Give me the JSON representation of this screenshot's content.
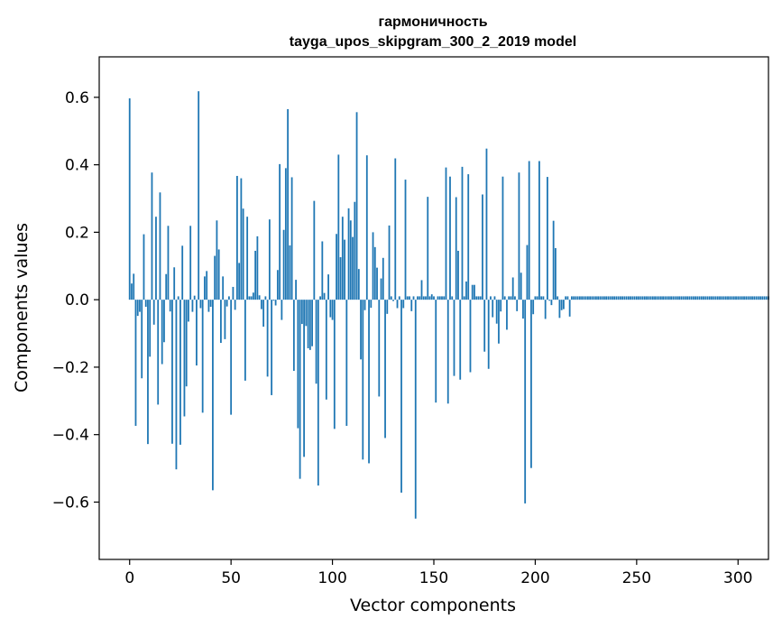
{
  "chart_data": {
    "type": "bar",
    "title_line1": "гармоничность",
    "title_line2": "tayga_upos_skipgram_300_2_2019 model",
    "xlabel": "Vector components",
    "ylabel": "Components values",
    "xlim": [
      -15,
      315
    ],
    "ylim": [
      -0.77,
      0.72
    ],
    "x_ticks": [
      0,
      50,
      100,
      150,
      200,
      250,
      300
    ],
    "x_tick_labels": [
      "0",
      "50",
      "100",
      "150",
      "200",
      "250",
      "300"
    ],
    "y_ticks": [
      -0.6,
      -0.4,
      -0.2,
      0.0,
      0.2,
      0.4,
      0.6
    ],
    "y_tick_labels": [
      "−0.6",
      "−0.4",
      "−0.2",
      "0.0",
      "0.2",
      "0.4",
      "0.6"
    ],
    "bar_color": "#1f77b4",
    "x_start": 0,
    "values": [
      0.597,
      0.048,
      0.077,
      -0.374,
      -0.048,
      -0.036,
      -0.233,
      0.194,
      -0.021,
      -0.428,
      -0.169,
      0.377,
      -0.074,
      0.246,
      -0.311,
      0.318,
      -0.191,
      -0.126,
      0.076,
      0.219,
      -0.035,
      -0.427,
      0.096,
      -0.503,
      0.01,
      -0.43,
      0.16,
      -0.346,
      -0.257,
      -0.065,
      0.219,
      -0.036,
      0.012,
      -0.195,
      0.618,
      -0.025,
      -0.335,
      0.069,
      0.085,
      -0.036,
      -0.021,
      -0.565,
      0.13,
      0.235,
      0.149,
      -0.128,
      0.069,
      -0.117,
      -0.02,
      0.01,
      -0.341,
      0.038,
      -0.03,
      0.367,
      0.109,
      0.36,
      0.27,
      -0.24,
      0.246,
      0.01,
      0.01,
      0.021,
      0.145,
      0.188,
      0.013,
      -0.028,
      -0.08,
      0.01,
      -0.228,
      0.238,
      -0.283,
      -0.003,
      -0.017,
      0.088,
      0.402,
      -0.06,
      0.207,
      0.39,
      0.565,
      0.161,
      0.363,
      -0.211,
      0.059,
      -0.381,
      -0.531,
      -0.072,
      -0.466,
      -0.078,
      -0.144,
      -0.149,
      -0.138,
      0.293,
      -0.249,
      -0.551,
      0.01,
      0.173,
      0.02,
      -0.296,
      0.075,
      -0.052,
      -0.06,
      -0.383,
      0.195,
      0.43,
      0.126,
      0.246,
      0.178,
      -0.374,
      0.271,
      0.235,
      0.186,
      0.29,
      0.556,
      0.091,
      -0.177,
      -0.474,
      -0.031,
      0.428,
      -0.485,
      -0.024,
      0.2,
      0.156,
      0.095,
      -0.287,
      0.063,
      0.124,
      -0.41,
      -0.042,
      0.22,
      0.01,
      -0.004,
      0.419,
      -0.025,
      0.01,
      -0.572,
      -0.025,
      0.356,
      0.01,
      0.01,
      -0.034,
      0.01,
      -0.649,
      0.01,
      0.01,
      0.058,
      0.01,
      0.01,
      0.305,
      0.01,
      0.016,
      0.01,
      -0.305,
      0.01,
      0.01,
      0.01,
      0.01,
      0.392,
      -0.308,
      0.365,
      0.01,
      -0.226,
      0.304,
      0.145,
      -0.237,
      0.394,
      0.01,
      0.054,
      0.372,
      -0.215,
      0.044,
      0.044,
      0.01,
      0.01,
      0.01,
      0.312,
      -0.154,
      0.448,
      -0.205,
      0.01,
      -0.052,
      0.01,
      -0.071,
      -0.13,
      -0.035,
      0.365,
      0.01,
      -0.089,
      0.01,
      0.01,
      0.066,
      0.01,
      -0.034,
      0.377,
      0.08,
      -0.056,
      -0.604,
      0.162,
      0.411,
      -0.499,
      -0.043,
      0.01,
      0.01,
      0.411,
      0.01,
      0.01,
      -0.057,
      0.364,
      -0.003,
      -0.016,
      0.234,
      0.153,
      0.01,
      -0.054,
      -0.031,
      -0.028,
      0.01,
      0.01,
      -0.05,
      0.01,
      0.01,
      0.01,
      0.01,
      0.01,
      0.01,
      0.01,
      0.01,
      0.01,
      0.01,
      0.01,
      0.01,
      0.01,
      0.01,
      0.01,
      0.01,
      0.01,
      0.01,
      0.01,
      0.01,
      0.01,
      0.01,
      0.01,
      0.01,
      0.01,
      0.01,
      0.01,
      0.01,
      0.01,
      0.01,
      0.01,
      0.01,
      0.01,
      0.01,
      0.01,
      0.01,
      0.01,
      0.01,
      0.01,
      0.01,
      0.01,
      0.01,
      0.01,
      0.01,
      0.01,
      0.01,
      0.01,
      0.01,
      0.01,
      0.01,
      0.01,
      0.01,
      0.01,
      0.01,
      0.01,
      0.01,
      0.01,
      0.01,
      0.01,
      0.01,
      0.01,
      0.01,
      0.01,
      0.01,
      0.01,
      0.01,
      0.01,
      0.01,
      0.01,
      0.01,
      0.01,
      0.01,
      0.01,
      0.01,
      0.01,
      0.01,
      0.01,
      0.01,
      0.01,
      0.01,
      0.01,
      0.01,
      0.01,
      0.01,
      0.01,
      0.01,
      0.01,
      0.01,
      0.01,
      0.01,
      0.01,
      0.01,
      0.01,
      0.01,
      0.01,
      0.01,
      0.01,
      0.01
    ]
  }
}
